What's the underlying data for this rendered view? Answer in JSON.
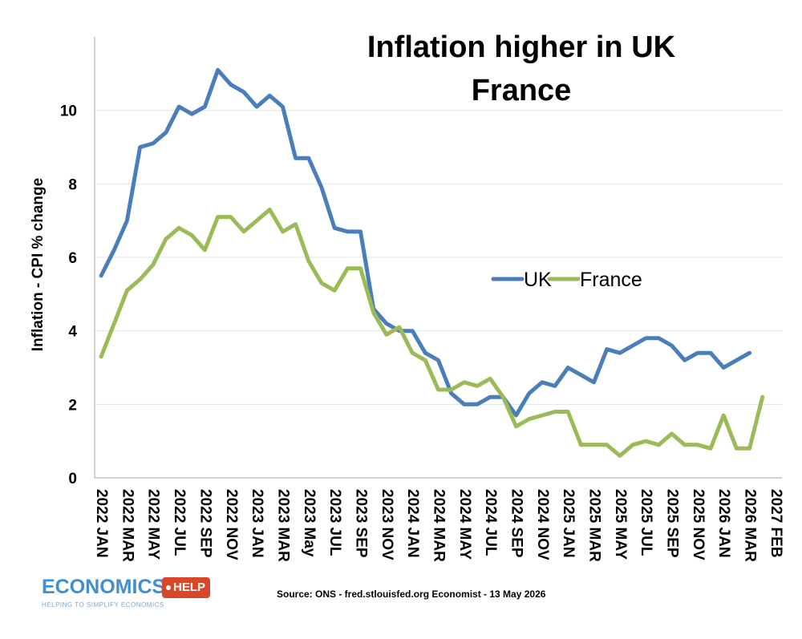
{
  "title_line1": "Inflation higher in UK",
  "title_line2": "France",
  "source": "Source: ONS  - fred.stlouisfed.org Economist - 13 May 2026",
  "logo": {
    "main": "ECONOMICS",
    "badge": "HELP",
    "tagline": "HELPING TO SIMPLIFY ECONOMICS"
  },
  "colors": {
    "uk": "#4a7ebb",
    "france": "#9bbb59",
    "grid": "#d9e8e8"
  },
  "chart_data": {
    "type": "line",
    "title": "Inflation higher in UK France",
    "ylabel": "Inflation - CPI % change",
    "xlabel": "",
    "ylim": [
      0,
      12
    ],
    "yticks": [
      0,
      2,
      4,
      6,
      8,
      10
    ],
    "grid": true,
    "legend": "center-right",
    "x_tick_labels": [
      "2022 JAN",
      "2022 MAR",
      "2022 MAY",
      "2022 JUL",
      "2022 SEP",
      "2022 NOV",
      "2023 JAN",
      "2023 MAR",
      "2023 May",
      "2023 JUL",
      "2023 SEP",
      "2023 NOV",
      "2024 JAN",
      "2024 MAR",
      "2024 MAY",
      "2024 JUL",
      "2024 SEP",
      "2024 NOV",
      "2025 JAN",
      "2025 MAR",
      "2025 MAY",
      "2025 JUL",
      "2025 SEP",
      "2025 NOV",
      "2026 JAN",
      "2026 MAR",
      "2027 FEB"
    ],
    "x_tick_index": [
      0,
      2,
      4,
      6,
      8,
      10,
      12,
      14,
      16,
      18,
      20,
      22,
      24,
      26,
      28,
      30,
      32,
      34,
      36,
      38,
      40,
      42,
      44,
      46,
      48,
      50,
      52
    ],
    "num_points": 53,
    "series": [
      {
        "name": "UK",
        "values": [
          5.5,
          6.2,
          7.0,
          9.0,
          9.1,
          9.4,
          10.1,
          9.9,
          10.1,
          11.1,
          10.7,
          10.5,
          10.1,
          10.4,
          10.1,
          8.7,
          8.7,
          7.9,
          6.8,
          6.7,
          6.7,
          4.6,
          4.2,
          4.0,
          4.0,
          3.4,
          3.2,
          2.3,
          2.0,
          2.0,
          2.2,
          2.2,
          1.7,
          2.3,
          2.6,
          2.5,
          3.0,
          2.8,
          2.6,
          3.5,
          3.4,
          3.6,
          3.8,
          3.8,
          3.6,
          3.2,
          3.4,
          3.4,
          3.0,
          3.2,
          3.4,
          null,
          null
        ]
      },
      {
        "name": "France",
        "values": [
          3.3,
          4.2,
          5.1,
          5.4,
          5.8,
          6.5,
          6.8,
          6.6,
          6.2,
          7.1,
          7.1,
          6.7,
          7.0,
          7.3,
          6.7,
          6.9,
          5.9,
          5.3,
          5.1,
          5.7,
          5.7,
          4.5,
          3.9,
          4.1,
          3.4,
          3.2,
          2.4,
          2.4,
          2.6,
          2.5,
          2.7,
          2.2,
          1.4,
          1.6,
          1.7,
          1.8,
          1.8,
          0.9,
          0.9,
          0.9,
          0.6,
          0.9,
          1.0,
          0.9,
          1.2,
          0.9,
          0.9,
          0.8,
          1.7,
          0.8,
          0.8,
          2.2,
          null
        ]
      }
    ]
  }
}
